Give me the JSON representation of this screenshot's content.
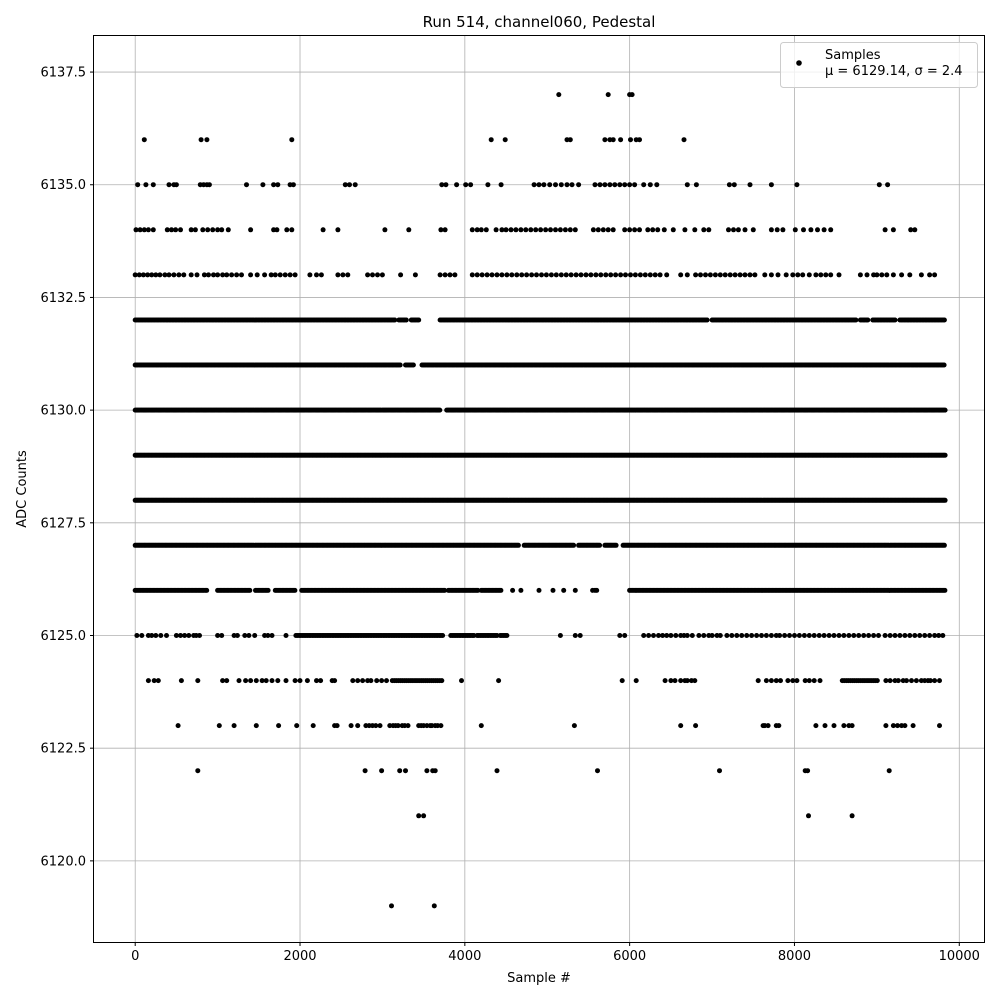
{
  "chart_data": {
    "type": "scatter",
    "title": "Run 514, channel060, Pedestal",
    "xlabel": "Sample #",
    "ylabel": "ADC Counts",
    "xlim": [
      -500,
      10300
    ],
    "ylim": [
      6118.2,
      6138.3
    ],
    "x_ticks": [
      0,
      2000,
      4000,
      6000,
      8000,
      10000
    ],
    "x_tick_labels": [
      "0",
      "2000",
      "4000",
      "6000",
      "8000",
      "10000"
    ],
    "y_ticks": [
      6120.0,
      6122.5,
      6125.0,
      6127.5,
      6130.0,
      6132.5,
      6135.0,
      6137.5
    ],
    "y_tick_labels": [
      "6120.0",
      "6122.5",
      "6125.0",
      "6127.5",
      "6130.0",
      "6132.5",
      "6135.0",
      "6137.5"
    ],
    "grid": true,
    "legend_position": "top-right",
    "marker_color": "#000000",
    "series": [
      {
        "name": "Samples",
        "stats_label": "μ = 6129.14, σ = 2.4",
        "n_samples": 9830,
        "levels": [
          {
            "y": 6137,
            "x": [
              5140,
              5740,
              6000,
              6030
            ]
          },
          {
            "y": 6136,
            "x": [
              110,
              800,
              870,
              1900,
              4320,
              4490,
              5240,
              5280,
              5700,
              5760,
              5800,
              5890,
              6010,
              6080,
              6120,
              6660
            ]
          },
          {
            "y": 6135,
            "x": [
              30,
              130,
              220,
              410,
              470,
              500,
              790,
              830,
              870,
              900,
              1350,
              1550,
              1680,
              1730,
              1880,
              1920,
              2550,
              2600,
              2670,
              3720,
              3770,
              3900,
              4010,
              4070,
              4280,
              4440,
              4840,
              4900,
              4960,
              5030,
              5100,
              5170,
              5240,
              5300,
              5380,
              5580,
              5640,
              5700,
              5760,
              5820,
              5880,
              5940,
              6000,
              6060,
              6170,
              6250,
              6330,
              6700,
              6810,
              7210,
              7270,
              7460,
              7720,
              8030,
              9030,
              9130
            ]
          },
          {
            "y": 6134,
            "x": [
              10,
              60,
              110,
              160,
              220,
              390,
              440,
              490,
              550,
              680,
              730,
              820,
              880,
              940,
              1000,
              1050,
              1130,
              1400,
              1680,
              1720,
              1840,
              1900,
              2280,
              2460,
              3030,
              3320,
              3710,
              3760,
              4090,
              4150,
              4200,
              4260,
              4380,
              4450,
              4500,
              4560,
              4620,
              4680,
              4740,
              4800,
              4860,
              4920,
              4980,
              5040,
              5100,
              5160,
              5220,
              5280,
              5340,
              5560,
              5620,
              5680,
              5740,
              5800,
              5940,
              6000,
              6060,
              6120,
              6220,
              6280,
              6340,
              6420,
              6530,
              6670,
              6790,
              6900,
              6960,
              7200,
              7260,
              7320,
              7400,
              7500,
              7720,
              7790,
              7860,
              8010,
              8110,
              8200,
              8280,
              8360,
              8440,
              9100,
              9200,
              9410,
              9460
            ]
          },
          {
            "y": 6133,
            "x": [
              0,
              50,
              100,
              150,
              200,
              250,
              300,
              360,
              410,
              470,
              530,
              590,
              680,
              750,
              840,
              890,
              950,
              1000,
              1060,
              1110,
              1170,
              1230,
              1290,
              1400,
              1480,
              1570,
              1650,
              1700,
              1760,
              1820,
              1880,
              1940,
              2120,
              2200,
              2260,
              2460,
              2520,
              2580,
              2820,
              2880,
              2940,
              3000,
              3220,
              3400,
              3700,
              3760,
              3820,
              3880,
              4090,
              4150,
              4210,
              4270,
              4330,
              4390,
              4450,
              4510,
              4570,
              4630,
              4690,
              4750,
              4810,
              4870,
              4930,
              4990,
              5050,
              5110,
              5170,
              5230,
              5290,
              5350,
              5410,
              5470,
              5530,
              5590,
              5650,
              5710,
              5770,
              5830,
              5890,
              5950,
              6010,
              6070,
              6130,
              6190,
              6250,
              6310,
              6370,
              6450,
              6620,
              6700,
              6800,
              6860,
              6920,
              6980,
              7040,
              7100,
              7160,
              7220,
              7280,
              7340,
              7400,
              7460,
              7520,
              7640,
              7720,
              7800,
              7900,
              7980,
              8040,
              8100,
              8180,
              8260,
              8320,
              8380,
              8440,
              8540,
              8800,
              8880,
              8960,
              9000,
              9060,
              9120,
              9200,
              9300,
              9400,
              9540,
              9640,
              9700
            ]
          },
          {
            "y": 6132,
            "x_ranges": [
              [
                0,
                3150
              ],
              [
                3200,
                3300
              ],
              [
                3350,
                3450
              ],
              [
                3700,
                6950
              ],
              [
                7000,
                8760
              ],
              [
                8800,
                8900
              ],
              [
                8950,
                9230
              ],
              [
                9280,
                9830
              ]
            ],
            "step": 18
          },
          {
            "y": 6131,
            "x_ranges": [
              [
                0,
                3220
              ],
              [
                3280,
                3390
              ],
              [
                3480,
                9830
              ]
            ],
            "step": 16
          },
          {
            "y": 6130,
            "x_ranges": [
              [
                0,
                3700
              ],
              [
                3780,
                9830
              ]
            ],
            "step": 14
          },
          {
            "y": 6129,
            "x_ranges": [
              [
                0,
                9830
              ]
            ],
            "step": 13
          },
          {
            "y": 6128,
            "x_ranges": [
              [
                0,
                9830
              ]
            ],
            "step": 13
          },
          {
            "y": 6127,
            "x_ranges": [
              [
                0,
                4660
              ],
              [
                4720,
                5320
              ],
              [
                5380,
                5640
              ],
              [
                5700,
                5840
              ],
              [
                5920,
                9830
              ]
            ],
            "step": 15
          },
          {
            "y": 6126,
            "x_ranges": [
              [
                0,
                870
              ],
              [
                1000,
                1400
              ],
              [
                1460,
                1620
              ],
              [
                1700,
                1950
              ],
              [
                2020,
                3760
              ],
              [
                3800,
                4160
              ],
              [
                4200,
                4440
              ],
              [
                6000,
                9830
              ]
            ],
            "step": 17,
            "x": [
              4580,
              4680,
              4900,
              5070,
              5200,
              5340,
              5550,
              5580,
              5600
            ]
          },
          {
            "y": 6125,
            "x": [
              20,
              80,
              160,
              200,
              250,
              310,
              380,
              500,
              550,
              600,
              650,
              710,
              740,
              780,
              1000,
              1050,
              1200,
              1240,
              1330,
              1380,
              1450,
              1570,
              1610,
              1660,
              1830,
              5160,
              5340,
              5400,
              5880,
              5940,
              6170,
              6230,
              6290,
              6350,
              6400,
              6450,
              6500,
              6560,
              6620,
              6660,
              6700,
              6760,
              6840,
              6900,
              6960,
              7000,
              7060,
              7100,
              7180,
              7240,
              7300,
              7360,
              7420,
              7480,
              7540,
              7600,
              7660,
              7720,
              7780,
              7820,
              7880,
              7940,
              8000,
              8060,
              8120,
              8180,
              8240,
              8300,
              8360,
              8420,
              8480,
              8540,
              8600,
              8660,
              8720,
              8780,
              8840,
              8900,
              8960,
              9020,
              9100,
              9160,
              9220,
              9280,
              9340,
              9400,
              9460,
              9520,
              9580,
              9640,
              9700,
              9750,
              9800
            ],
            "x_ranges": [
              [
                1950,
                3730
              ],
              [
                3830,
                4110
              ],
              [
                4150,
                4400
              ],
              [
                4430,
                4520
              ]
            ],
            "step": 20
          },
          {
            "y": 6124,
            "x": [
              160,
              230,
              280,
              560,
              760,
              1060,
              1110,
              1260,
              1340,
              1400,
              1470,
              1540,
              1590,
              1660,
              1730,
              1830,
              1940,
              2000,
              2090,
              2200,
              2250,
              2390,
              2420,
              2640,
              2700,
              2760,
              2820,
              2860,
              2930,
              2990,
              3050,
              3960,
              4410,
              5910,
              6080,
              6430,
              6500,
              6550,
              6620,
              6670,
              6700,
              6750,
              6790,
              7560,
              7660,
              7720,
              7780,
              7830,
              7920,
              7980,
              8030,
              8130,
              8180,
              8240,
              8310,
              9110,
              9160,
              9220,
              9260,
              9320,
              9360,
              9420,
              9480,
              9540,
              9580,
              9620,
              9650,
              9700,
              9760
            ],
            "x_ranges": [
              [
                3120,
                3720
              ],
              [
                8580,
                9010
              ]
            ],
            "step": 25
          },
          {
            "y": 6123,
            "x": [
              520,
              1020,
              1200,
              1470,
              1740,
              1960,
              2160,
              2420,
              2450,
              2620,
              2700,
              2800,
              2840,
              2880,
              2920,
              2970,
              3090,
              3130,
              3160,
              3190,
              3240,
              3270,
              3310,
              3440,
              3470,
              3500,
              3540,
              3580,
              3600,
              3640,
              3670,
              3710,
              4200,
              5330,
              6620,
              6800,
              7620,
              7640,
              7680,
              7780,
              7810,
              8260,
              8370,
              8480,
              8600,
              8660,
              8700,
              9110,
              9200,
              9250,
              9300,
              9340,
              9440,
              9760
            ]
          },
          {
            "y": 6122,
            "x": [
              760,
              2790,
              2990,
              3210,
              3280,
              3540,
              3610,
              3640,
              4390,
              5610,
              7090,
              8130,
              8160,
              9150
            ]
          },
          {
            "y": 6121,
            "x": [
              3440,
              3500,
              8170,
              8700
            ]
          },
          {
            "y": 6119,
            "x": [
              3110,
              3630
            ]
          }
        ]
      }
    ]
  }
}
